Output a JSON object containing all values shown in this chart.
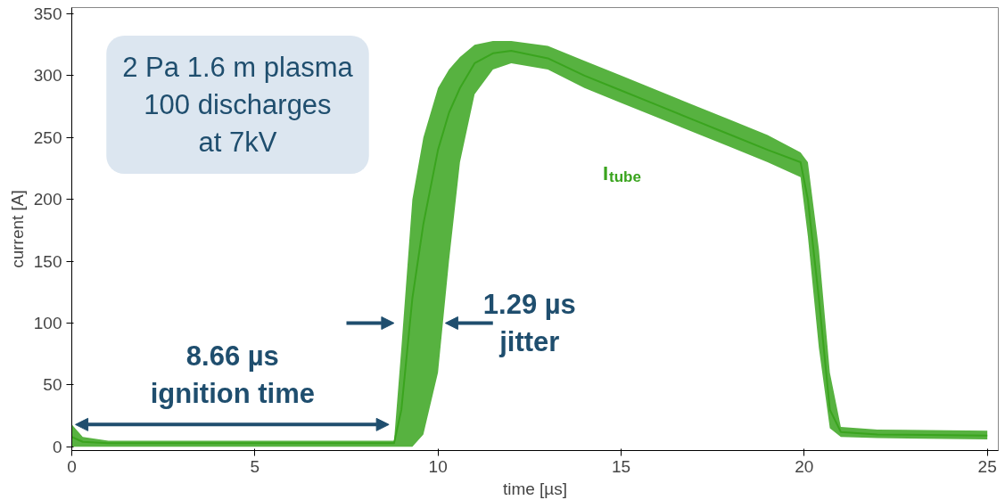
{
  "chart_data": {
    "type": "line",
    "xlabel": "time [µs]",
    "ylabel": "current [A]",
    "annotations": [
      "2 Pa 1.6 m plasma\n100 discharges\nat 7kV",
      "8.66 µs\nignition time",
      "1.29 µs\njitter"
    ],
    "xlim": [
      0,
      25.3
    ],
    "xticks": [
      0,
      5,
      10,
      15,
      20,
      25
    ],
    "ylim": [
      -3,
      355
    ],
    "yticks": [
      0,
      50,
      100,
      150,
      200,
      250,
      300,
      350
    ],
    "grid": false,
    "series": [
      {
        "name": "I$_{tube}$",
        "color": "#3aa41e",
        "x": [
          0,
          0.3,
          1,
          8.8,
          9.0,
          9.3,
          9.6,
          10.0,
          10.3,
          10.6,
          11,
          11.5,
          12,
          13,
          14,
          15,
          16,
          17,
          18,
          19,
          19.9,
          20.1,
          20.4,
          20.7,
          21,
          22,
          25
        ],
        "values": [
          8,
          4,
          3,
          3,
          30,
          120,
          180,
          240,
          270,
          290,
          310,
          318,
          320,
          314,
          300,
          288,
          276,
          264,
          252,
          240,
          230,
          200,
          120,
          30,
          12,
          10,
          9
        ],
        "lower": [
          0,
          0,
          0,
          0,
          0,
          0,
          10,
          60,
          150,
          230,
          285,
          305,
          310,
          305,
          290,
          278,
          266,
          254,
          242,
          230,
          218,
          170,
          80,
          15,
          8,
          7,
          6
        ],
        "upper": [
          18,
          8,
          5,
          5,
          80,
          200,
          250,
          290,
          305,
          315,
          325,
          328,
          328,
          324,
          312,
          300,
          288,
          276,
          264,
          252,
          238,
          230,
          160,
          60,
          16,
          14,
          13
        ]
      }
    ]
  }
}
